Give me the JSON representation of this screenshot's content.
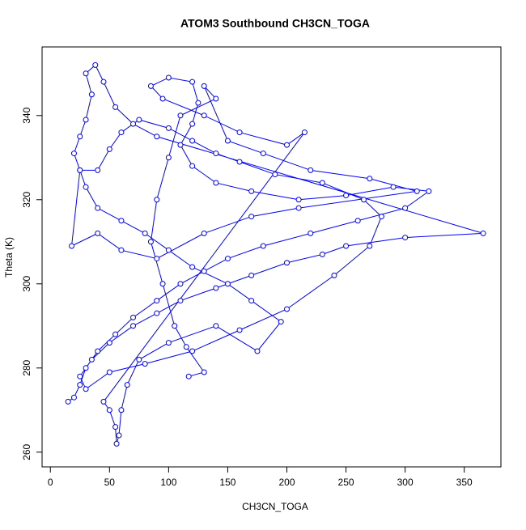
{
  "chart_data": {
    "type": "line",
    "title": "ATOM3 Southbound CH3CN_TOGA",
    "x_label": "CH3CN_TOGA",
    "y_label": "Theta (K)",
    "color": "#0000ff",
    "x": [
      15,
      20,
      25,
      30,
      40,
      55,
      70,
      90,
      110,
      130,
      150,
      180,
      220,
      260,
      300,
      320,
      290,
      250,
      210,
      170,
      140,
      120,
      110,
      120,
      125,
      120,
      100,
      85,
      95,
      130,
      160,
      200,
      215,
      45,
      50,
      55,
      56,
      58,
      60,
      65,
      75,
      100,
      140,
      175,
      195,
      170,
      150,
      120,
      100,
      80,
      60,
      40,
      30,
      25,
      20,
      25,
      30,
      35,
      30,
      38,
      45,
      55,
      70,
      90,
      366,
      300,
      250,
      230,
      200,
      170,
      140,
      110,
      90,
      70,
      50,
      35,
      25,
      30,
      50,
      80,
      120,
      160,
      200,
      240,
      270,
      280,
      265,
      230,
      190,
      160,
      140,
      120,
      100,
      75,
      60,
      50,
      40,
      25,
      18,
      40,
      60,
      90,
      130,
      170,
      210,
      310,
      270,
      220,
      180,
      150,
      130,
      140,
      110,
      100,
      90,
      85,
      95,
      105,
      115,
      130,
      117
    ],
    "values": [
      272,
      273,
      276,
      280,
      284,
      288,
      292,
      296,
      300,
      303,
      306,
      309,
      312,
      315,
      318,
      322,
      323,
      321,
      320,
      322,
      324,
      328,
      333,
      338,
      343,
      348,
      349,
      347,
      344,
      340,
      336,
      333,
      336,
      272,
      270,
      266,
      262,
      264,
      270,
      276,
      282,
      286,
      290,
      284,
      291,
      296,
      300,
      304,
      308,
      312,
      315,
      318,
      323,
      327,
      331,
      335,
      339,
      345,
      350,
      352,
      348,
      342,
      338,
      335,
      312,
      311,
      309,
      307,
      305,
      302,
      299,
      296,
      293,
      290,
      286,
      282,
      278,
      275,
      279,
      281,
      284,
      289,
      294,
      302,
      309,
      316,
      320,
      324,
      326,
      329,
      331,
      334,
      337,
      339,
      336,
      332,
      327,
      327,
      309,
      312,
      308,
      306,
      312,
      316,
      318,
      322,
      325,
      327,
      331,
      334,
      347,
      344,
      340,
      330,
      320,
      310,
      300,
      290,
      285,
      279,
      278
    ],
    "xlim": [
      -7,
      381
    ],
    "ylim": [
      256.5,
      356.3
    ],
    "xticks": [
      0,
      50,
      100,
      150,
      200,
      250,
      300,
      350
    ],
    "yticks": [
      260,
      280,
      300,
      320,
      340
    ]
  }
}
